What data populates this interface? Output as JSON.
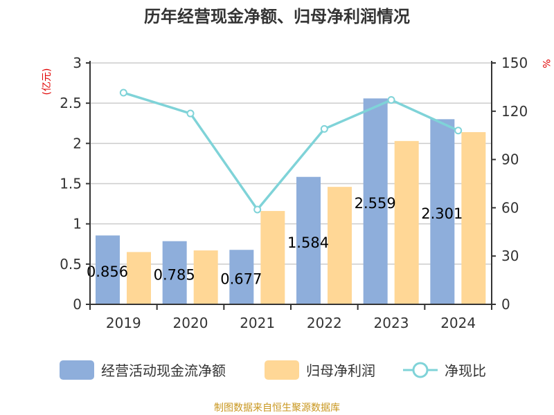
{
  "chart_data": {
    "type": "bar",
    "title": "历年经营现金净额、归母净利润情况",
    "categories": [
      "2019",
      "2020",
      "2021",
      "2022",
      "2023",
      "2024"
    ],
    "ylabel_left": "(亿元)",
    "ylabel_right": "%",
    "ylim_left": [
      0,
      3
    ],
    "yticks_left": [
      "0",
      "0.5",
      "1",
      "1.5",
      "2",
      "2.5",
      "3"
    ],
    "ylim_right": [
      0,
      150
    ],
    "yticks_right": [
      "0",
      "30",
      "60",
      "90",
      "120",
      "150"
    ],
    "grid": true,
    "legend_position": "bottom",
    "series": [
      {
        "name": "经营活动现金流净额",
        "type": "bar",
        "color": "#8EAEDB",
        "values": [
          0.856,
          0.785,
          0.677,
          1.584,
          2.559,
          2.301
        ],
        "labels": [
          "0.856",
          "0.785",
          "0.677",
          "1.584",
          "2.559",
          "2.301"
        ]
      },
      {
        "name": "归母净利润",
        "type": "bar",
        "color": "#FFD796",
        "values": [
          0.65,
          0.67,
          1.16,
          1.46,
          2.03,
          2.14
        ]
      },
      {
        "name": "净现比",
        "type": "line",
        "axis": "right",
        "color": "#7FD3D8",
        "values": [
          131.5,
          118.6,
          58.9,
          109,
          127,
          108
        ]
      }
    ]
  },
  "source": "制图数据来自恒生聚源数据库",
  "colors": {
    "title": "#333333",
    "axis_label": "#E00000",
    "source": "#C8961E"
  }
}
